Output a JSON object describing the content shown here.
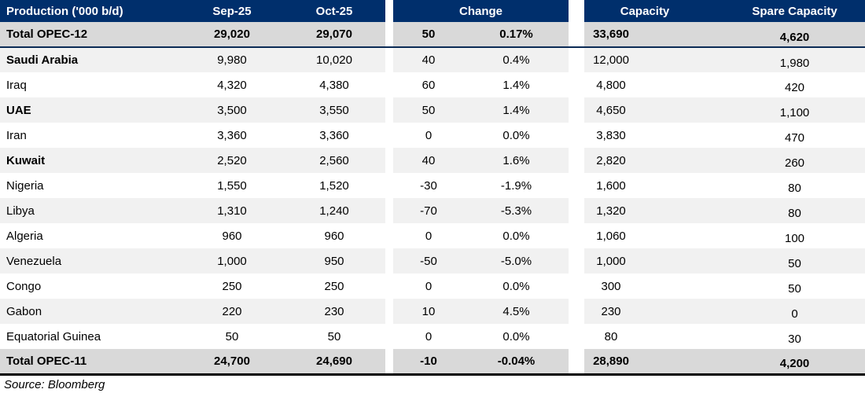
{
  "table": {
    "header": {
      "production_label": "Production ('000 b/d)",
      "col_sep": "Sep-25",
      "col_oct": "Oct-25",
      "col_change": "Change",
      "col_capacity": "Capacity",
      "col_spare": "Spare Capacity"
    },
    "rows": [
      {
        "name": "Total OPEC-12",
        "sep": "29,020",
        "oct": "29,070",
        "change": "50",
        "change_pct": "0.17%",
        "capacity": "33,690",
        "spare": "4,620",
        "total": true,
        "bold": true
      },
      {
        "name": "Saudi Arabia",
        "sep": "9,980",
        "oct": "10,020",
        "change": "40",
        "change_pct": "0.4%",
        "capacity": "12,000",
        "spare": "1,980",
        "total": false,
        "bold": true
      },
      {
        "name": "Iraq",
        "sep": "4,320",
        "oct": "4,380",
        "change": "60",
        "change_pct": "1.4%",
        "capacity": "4,800",
        "spare": "420",
        "total": false,
        "bold": false
      },
      {
        "name": "UAE",
        "sep": "3,500",
        "oct": "3,550",
        "change": "50",
        "change_pct": "1.4%",
        "capacity": "4,650",
        "spare": "1,100",
        "total": false,
        "bold": true
      },
      {
        "name": "Iran",
        "sep": "3,360",
        "oct": "3,360",
        "change": "0",
        "change_pct": "0.0%",
        "capacity": "3,830",
        "spare": "470",
        "total": false,
        "bold": false
      },
      {
        "name": "Kuwait",
        "sep": "2,520",
        "oct": "2,560",
        "change": "40",
        "change_pct": "1.6%",
        "capacity": "2,820",
        "spare": "260",
        "total": false,
        "bold": true
      },
      {
        "name": "Nigeria",
        "sep": "1,550",
        "oct": "1,520",
        "change": "-30",
        "change_pct": "-1.9%",
        "capacity": "1,600",
        "spare": "80",
        "total": false,
        "bold": false
      },
      {
        "name": "Libya",
        "sep": "1,310",
        "oct": "1,240",
        "change": "-70",
        "change_pct": "-5.3%",
        "capacity": "1,320",
        "spare": "80",
        "total": false,
        "bold": false
      },
      {
        "name": "Algeria",
        "sep": "960",
        "oct": "960",
        "change": "0",
        "change_pct": "0.0%",
        "capacity": "1,060",
        "spare": "100",
        "total": false,
        "bold": false
      },
      {
        "name": "Venezuela",
        "sep": "1,000",
        "oct": "950",
        "change": "-50",
        "change_pct": "-5.0%",
        "capacity": "1,000",
        "spare": "50",
        "total": false,
        "bold": false
      },
      {
        "name": "Congo",
        "sep": "250",
        "oct": "250",
        "change": "0",
        "change_pct": "0.0%",
        "capacity": "300",
        "spare": "50",
        "total": false,
        "bold": false
      },
      {
        "name": "Gabon",
        "sep": "220",
        "oct": "230",
        "change": "10",
        "change_pct": "4.5%",
        "capacity": "230",
        "spare": "0",
        "total": false,
        "bold": false
      },
      {
        "name": "Equatorial Guinea",
        "sep": "50",
        "oct": "50",
        "change": "0",
        "change_pct": "0.0%",
        "capacity": "80",
        "spare": "30",
        "total": false,
        "bold": false
      },
      {
        "name": "Total OPEC-11",
        "sep": "24,700",
        "oct": "24,690",
        "change": "-10",
        "change_pct": "-0.04%",
        "capacity": "28,890",
        "spare": "4,200",
        "total": true,
        "bold": true
      }
    ],
    "source": "Source: Bloomberg"
  },
  "colors": {
    "header_bg": "#002F6C",
    "header_text": "#ffffff",
    "total_row_bg": "#d9d9d9",
    "stripe_bg": "#f1f1f1",
    "bottom_border": "#000000"
  },
  "chart_data": {
    "type": "table",
    "title": "OPEC Production ('000 b/d)",
    "columns": [
      "Production ('000 b/d)",
      "Sep-25",
      "Oct-25",
      "Change",
      "Change %",
      "Capacity",
      "Spare Capacity"
    ],
    "rows": [
      [
        "Total OPEC-12",
        29020,
        29070,
        50,
        "0.17%",
        33690,
        4620
      ],
      [
        "Saudi Arabia",
        9980,
        10020,
        40,
        "0.4%",
        12000,
        1980
      ],
      [
        "Iraq",
        4320,
        4380,
        60,
        "1.4%",
        4800,
        420
      ],
      [
        "UAE",
        3500,
        3550,
        50,
        "1.4%",
        4650,
        1100
      ],
      [
        "Iran",
        3360,
        3360,
        0,
        "0.0%",
        3830,
        470
      ],
      [
        "Kuwait",
        2520,
        2560,
        40,
        "1.6%",
        2820,
        260
      ],
      [
        "Nigeria",
        1550,
        1520,
        -30,
        "-1.9%",
        1600,
        80
      ],
      [
        "Libya",
        1310,
        1240,
        -70,
        "-5.3%",
        1320,
        80
      ],
      [
        "Algeria",
        960,
        960,
        0,
        "0.0%",
        1060,
        100
      ],
      [
        "Venezuela",
        1000,
        950,
        -50,
        "-5.0%",
        1000,
        50
      ],
      [
        "Congo",
        250,
        250,
        0,
        "0.0%",
        300,
        50
      ],
      [
        "Gabon",
        220,
        230,
        10,
        "4.5%",
        230,
        0
      ],
      [
        "Equatorial Guinea",
        50,
        50,
        0,
        "0.0%",
        80,
        30
      ],
      [
        "Total OPEC-11",
        24700,
        24690,
        -10,
        "-0.04%",
        28890,
        4200
      ]
    ],
    "source": "Source: Bloomberg"
  }
}
